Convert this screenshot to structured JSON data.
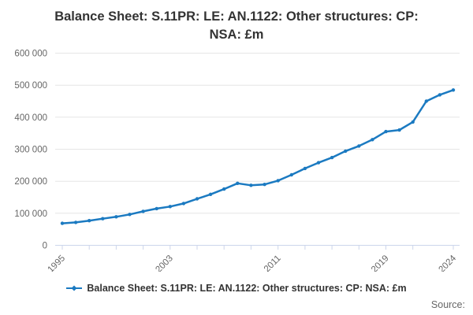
{
  "title_lines": {
    "line1": "Balance Sheet: S.11PR: LE: AN.1122: Other structures: CP:",
    "line2": "NSA: £m"
  },
  "legend": {
    "label": "Balance Sheet: S.11PR: LE: AN.1122: Other structures: CP: NSA: £m"
  },
  "source_label": "Source:",
  "colors": {
    "line": "#1b7ac1",
    "grid": "#e6e6e6",
    "axis": "#ccd6eb",
    "tick_label": "#666666",
    "title": "#333333",
    "legend_text": "#333333",
    "source_text": "#666666",
    "background": "#ffffff"
  },
  "chart_data": {
    "type": "line",
    "title": "Balance Sheet: S.11PR: LE: AN.1122: Other structures: CP: NSA: £m",
    "xlabel": "",
    "ylabel": "",
    "x": [
      1995,
      1996,
      1997,
      1998,
      1999,
      2000,
      2001,
      2002,
      2003,
      2004,
      2005,
      2006,
      2007,
      2008,
      2009,
      2010,
      2011,
      2012,
      2013,
      2014,
      2015,
      2016,
      2017,
      2018,
      2019,
      2020,
      2021,
      2022,
      2023,
      2024
    ],
    "series": [
      {
        "name": "Balance Sheet: S.11PR: LE: AN.1122: Other structures: CP: NSA: £m",
        "values": [
          68500,
          71500,
          77000,
          83000,
          89000,
          96500,
          106000,
          114500,
          121000,
          130500,
          145000,
          159000,
          175500,
          193500,
          187500,
          190000,
          202000,
          220000,
          240000,
          258000,
          274000,
          294000,
          310000,
          330000,
          355000,
          360000,
          385000,
          450000,
          470000,
          485000
        ]
      }
    ],
    "ylim": [
      0,
      600000
    ],
    "yticks": [
      0,
      100000,
      200000,
      300000,
      400000,
      500000,
      600000
    ],
    "ytick_labels": [
      "0",
      "100 000",
      "200 000",
      "300 000",
      "400 000",
      "500 000",
      "600 000"
    ],
    "xticks_minor": [
      1995,
      1997,
      1999,
      2001,
      2003,
      2005,
      2007,
      2009,
      2011,
      2013,
      2015,
      2017,
      2019,
      2021,
      2024
    ],
    "xtick_labels": [
      1995,
      2003,
      2011,
      2019,
      2024
    ],
    "grid": "horizontal",
    "legend_position": "bottom",
    "marker": "circle"
  }
}
